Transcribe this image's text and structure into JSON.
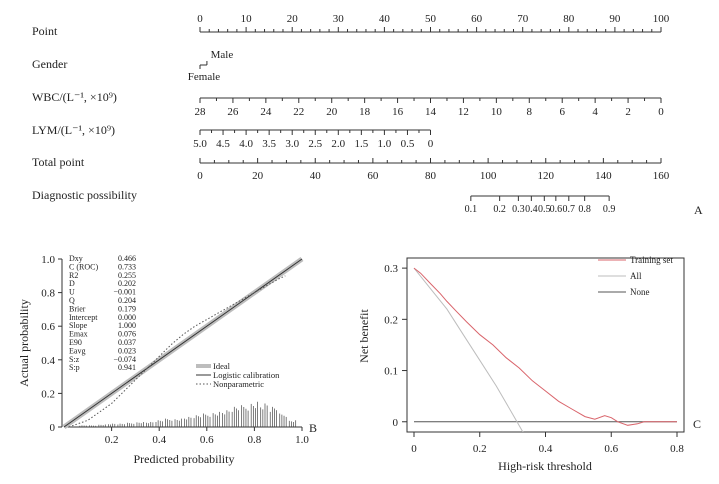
{
  "nomogram": {
    "panel_label": "A",
    "rows": [
      {
        "label": "Point",
        "ticks": [
          "0",
          "10",
          "20",
          "30",
          "40",
          "50",
          "60",
          "70",
          "80",
          "90",
          "100"
        ]
      },
      {
        "label": "Gender",
        "ticks": [
          "Male",
          "Female"
        ]
      },
      {
        "label": "WBC/(L⁻¹, ×10⁹)",
        "ticks": [
          "28",
          "26",
          "24",
          "22",
          "20",
          "18",
          "16",
          "14",
          "12",
          "10",
          "8",
          "6",
          "4",
          "2",
          "0"
        ]
      },
      {
        "label": "LYM/(L⁻¹, ×10⁹)",
        "ticks": [
          "5.0",
          "4.5",
          "4.0",
          "3.5",
          "3.0",
          "2.5",
          "2.0",
          "1.5",
          "1.0",
          "0.5",
          "0"
        ]
      },
      {
        "label": "Total point",
        "ticks": [
          "0",
          "20",
          "40",
          "60",
          "80",
          "100",
          "120",
          "140",
          "160"
        ]
      },
      {
        "label": "Diagnostic possibility",
        "ticks": [
          "0.1",
          "0.2",
          "0.3",
          "0.4",
          "0.5",
          "0.6",
          "0.7",
          "0.8",
          "0.9"
        ]
      }
    ]
  },
  "calibration": {
    "panel_label": "B",
    "xlabel": "Predicted probability",
    "ylabel": "Actual probability",
    "xticks": [
      "0.2",
      "0.4",
      "0.6",
      "0.8",
      "1.0"
    ],
    "yticks": [
      "0",
      "0.2",
      "0.4",
      "0.6",
      "0.8",
      "1.0"
    ],
    "stats": [
      [
        "Dxy",
        "0.466"
      ],
      [
        "C (ROC)",
        "0.733"
      ],
      [
        "R2",
        "0.255"
      ],
      [
        "D",
        "0.202"
      ],
      [
        "U",
        "−0.001"
      ],
      [
        "Q",
        "0.204"
      ],
      [
        "Brier",
        "0.179"
      ],
      [
        "Intercept",
        "0.000"
      ],
      [
        "Slope",
        "1.000"
      ],
      [
        "Emax",
        "0.076"
      ],
      [
        "E90",
        "0.037"
      ],
      [
        "Eavg",
        "0.023"
      ],
      [
        "S:z",
        "−0.074"
      ],
      [
        "S:p",
        "0.941"
      ]
    ],
    "legend": [
      "Ideal",
      "Logistic calibration",
      "Nonparametric"
    ]
  },
  "dca": {
    "panel_label": "C",
    "xlabel": "High-risk threshold",
    "ylabel": "Net benefit",
    "xticks": [
      "0",
      "0.2",
      "0.4",
      "0.6",
      "0.8"
    ],
    "yticks": [
      "0",
      "0.1",
      "0.2",
      "0.3"
    ],
    "legend": [
      "Training set",
      "All",
      "None"
    ]
  },
  "colors": {
    "training": "#d9646b",
    "all": "#bdbdbd",
    "none": "#555555",
    "axis": "#333333"
  },
  "chart_data": [
    {
      "type": "nomogram",
      "title": "",
      "axes": [
        {
          "name": "Point",
          "range": [
            0,
            100
          ]
        },
        {
          "name": "Gender",
          "values": {
            "Male": 0,
            "Female": 0
          },
          "points": {
            "Female": 0,
            "Male": 1.5
          }
        },
        {
          "name": "WBC/(L⁻¹, ×10⁹)",
          "range": [
            28,
            0
          ],
          "points": [
            0,
            100
          ]
        },
        {
          "name": "LYM/(L⁻¹, ×10⁹)",
          "range": [
            5.0,
            0
          ],
          "points": [
            0,
            50
          ]
        },
        {
          "name": "Total point",
          "range": [
            0,
            160
          ]
        },
        {
          "name": "Diagnostic possibility",
          "values": [
            0.1,
            0.2,
            0.3,
            0.4,
            0.5,
            0.6,
            0.7,
            0.8,
            0.9
          ],
          "total_points": [
            94,
            104,
            110.5,
            115,
            119.5,
            123.5,
            128,
            133.5,
            142
          ]
        }
      ]
    },
    {
      "type": "line",
      "xlim": [
        0,
        1
      ],
      "ylim": [
        0,
        1
      ],
      "series": [
        {
          "name": "Ideal",
          "x": [
            0,
            1
          ],
          "y": [
            0,
            1
          ]
        },
        {
          "name": "Logistic calibration",
          "x": [
            0,
            1
          ],
          "y": [
            0,
            1
          ]
        },
        {
          "name": "Nonparametric",
          "x": [
            0.02,
            0.1,
            0.2,
            0.3,
            0.4,
            0.45,
            0.5,
            0.55,
            0.6,
            0.7,
            0.8,
            0.9,
            0.93
          ],
          "y": [
            0.0,
            0.04,
            0.14,
            0.28,
            0.42,
            0.49,
            0.55,
            0.6,
            0.64,
            0.72,
            0.8,
            0.88,
            0.9
          ]
        }
      ],
      "histogram": {
        "x": [
          0.08,
          0.12,
          0.16,
          0.2,
          0.24,
          0.28,
          0.32,
          0.36,
          0.4,
          0.44,
          0.48,
          0.52,
          0.56,
          0.6,
          0.64,
          0.68,
          0.72,
          0.76,
          0.8,
          0.84,
          0.88,
          0.92,
          0.96
        ],
        "height": [
          0.01,
          0.01,
          0.015,
          0.02,
          0.02,
          0.025,
          0.03,
          0.03,
          0.04,
          0.05,
          0.05,
          0.06,
          0.07,
          0.08,
          0.09,
          0.1,
          0.12,
          0.13,
          0.15,
          0.14,
          0.12,
          0.08,
          0.04
        ]
      }
    },
    {
      "type": "line",
      "xlim": [
        0,
        0.8
      ],
      "ylim": [
        -0.02,
        0.31
      ],
      "series": [
        {
          "name": "Training set",
          "x": [
            0,
            0.02,
            0.05,
            0.08,
            0.1,
            0.13,
            0.16,
            0.2,
            0.24,
            0.28,
            0.32,
            0.36,
            0.4,
            0.44,
            0.48,
            0.52,
            0.55,
            0.58,
            0.6,
            0.62,
            0.65,
            0.68,
            0.7,
            0.75,
            0.8
          ],
          "y": [
            0.3,
            0.29,
            0.27,
            0.25,
            0.235,
            0.215,
            0.195,
            0.17,
            0.15,
            0.125,
            0.105,
            0.08,
            0.06,
            0.04,
            0.025,
            0.01,
            0.005,
            0.012,
            0.008,
            0.0,
            -0.007,
            -0.004,
            0.0,
            0.0,
            0.0
          ]
        },
        {
          "name": "All",
          "x": [
            0,
            0.05,
            0.1,
            0.15,
            0.2,
            0.25,
            0.3,
            0.34
          ],
          "y": [
            0.3,
            0.26,
            0.22,
            0.17,
            0.12,
            0.07,
            0.015,
            -0.03
          ]
        },
        {
          "name": "None",
          "x": [
            0,
            0.8
          ],
          "y": [
            0,
            0
          ]
        }
      ]
    }
  ]
}
